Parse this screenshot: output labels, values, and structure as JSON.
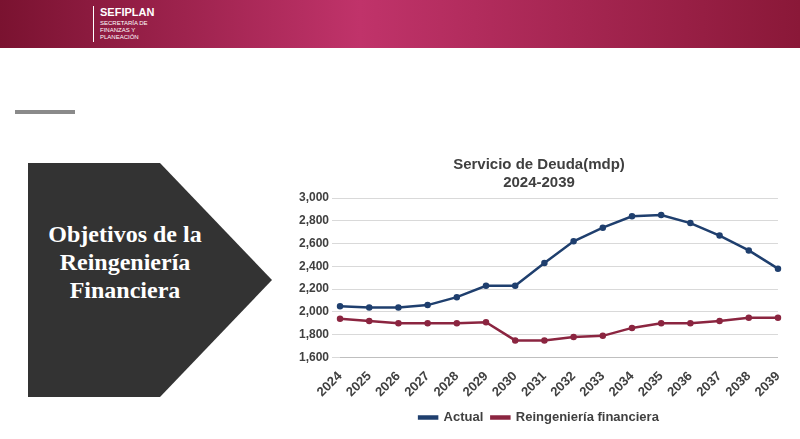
{
  "header": {
    "title": "SEFIPLAN",
    "subtitle": "SECRETARÍA DE FINANZAS Y PLANEACIÓN"
  },
  "slide_title": "Objetivos de la Reingeniería Financiera",
  "chart_data": {
    "type": "line",
    "title": "Servicio de Deuda(mdp)",
    "subtitle": "2024-2039",
    "categories": [
      "2024",
      "2025",
      "2026",
      "2027",
      "2028",
      "2029",
      "2030",
      "2031",
      "2032",
      "2033",
      "2034",
      "2035",
      "2036",
      "2037",
      "2038",
      "2039"
    ],
    "series": [
      {
        "name": "Actual",
        "color": "#1f3f6e",
        "marker": "circle",
        "values": [
          2050,
          2040,
          2040,
          2060,
          2130,
          2230,
          2230,
          2430,
          2620,
          2740,
          2840,
          2850,
          2780,
          2670,
          2540,
          2380
        ]
      },
      {
        "name": "Reingeniería financiera",
        "color": "#8b2540",
        "marker": "circle",
        "values": [
          1940,
          1920,
          1900,
          1900,
          1900,
          1910,
          1750,
          1750,
          1780,
          1790,
          1860,
          1900,
          1900,
          1920,
          1950,
          1950
        ]
      }
    ],
    "ylim": [
      1600,
      3000
    ],
    "yticks": [
      {
        "value": 1600,
        "label": "1,600"
      },
      {
        "value": 1800,
        "label": "1,800"
      },
      {
        "value": 2000,
        "label": "2,000"
      },
      {
        "value": 2200,
        "label": "2,200"
      },
      {
        "value": 2400,
        "label": "2,400"
      },
      {
        "value": 2600,
        "label": "2,600"
      },
      {
        "value": 2800,
        "label": "2,800"
      },
      {
        "value": 3000,
        "label": "3,000"
      }
    ],
    "grid": true,
    "legend": "bottom"
  }
}
